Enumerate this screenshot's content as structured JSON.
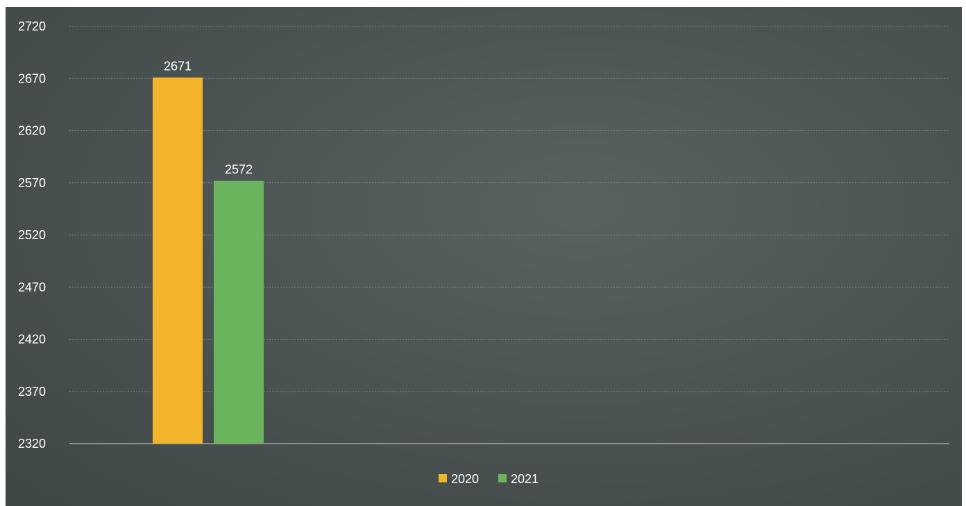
{
  "chart_data": {
    "type": "bar",
    "categories": [
      ""
    ],
    "series": [
      {
        "name": "2020",
        "values": [
          2671
        ],
        "color": "#f2b42a"
      },
      {
        "name": "2021",
        "values": [
          2572
        ],
        "color": "#6cb35e"
      }
    ],
    "ylim": [
      2320,
      2720
    ],
    "yticks": [
      2320,
      2370,
      2420,
      2470,
      2520,
      2570,
      2620,
      2670,
      2720
    ],
    "grid": true,
    "legend_position": "bottom",
    "title": "",
    "xlabel": "",
    "ylabel": ""
  }
}
